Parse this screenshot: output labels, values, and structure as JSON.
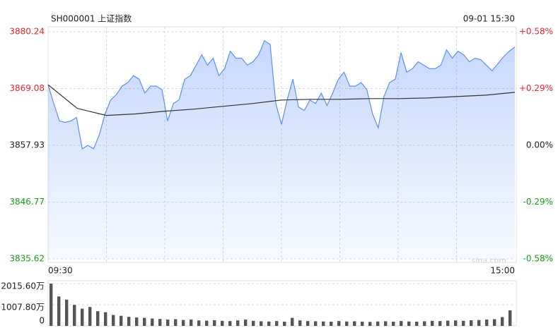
{
  "chart_data": [
    {
      "type": "line",
      "title": "SH000001 上证指数",
      "timestamp": "09-01 15:30",
      "watermark": "sina.com",
      "xtick_labels": [
        "09:30",
        "15:00"
      ],
      "ylim": [
        3835.62,
        3880.24
      ],
      "yticks": [
        3880.24,
        3869.08,
        3857.93,
        3846.77,
        3835.62
      ],
      "y2lim": [
        -0.58,
        0.58
      ],
      "y2ticks": [
        {
          "value": 0.58,
          "label": "+0.58%"
        },
        {
          "value": 0.29,
          "label": "+0.29%"
        },
        {
          "value": 0,
          "label": "0.00%"
        },
        {
          "value": -0.29,
          "label": "-0.29%"
        },
        {
          "value": -0.58,
          "label": "-0.58%"
        }
      ],
      "up_color": "#e8262a",
      "down_color": "#1a9a1a",
      "flat_color": "#222222",
      "grid": true,
      "series": [
        {
          "name": "price",
          "color": "#5b8ff9",
          "fill": true,
          "values": [
            3869.84,
            3866.14,
            3862.72,
            3862.44,
            3862.72,
            3863.4,
            3857.24,
            3857.93,
            3857.24,
            3859.98,
            3864.09,
            3866.82,
            3867.92,
            3869.56,
            3870.25,
            3871.62,
            3870.93,
            3868.19,
            3869.56,
            3869.56,
            3868.88,
            3862.72,
            3866.14,
            3866.82,
            3870.93,
            3871.62,
            3873.67,
            3875.72,
            3873.67,
            3875.04,
            3871.62,
            3872.98,
            3876.41,
            3875.04,
            3875.04,
            3873.67,
            3874.35,
            3875.72,
            3878.46,
            3877.78,
            3866.14,
            3862.03,
            3866.82,
            3870.93,
            3865.45,
            3864.77,
            3866.82,
            3866.14,
            3868.19,
            3865.73,
            3868.19,
            3870.93,
            3872.3,
            3869.56,
            3869.56,
            3870.25,
            3868.88,
            3864.09,
            3861.35,
            3867.51,
            3870.25,
            3870.93,
            3876.13,
            3872.3,
            3872.98,
            3874.35,
            3873.67,
            3872.98,
            3872.98,
            3873.67,
            3876.68,
            3875.04,
            3876.41,
            3875.72,
            3874.35,
            3875.04,
            3874.76,
            3873.67,
            3872.57,
            3873.94,
            3875.31,
            3876.41,
            3877.23
          ]
        },
        {
          "name": "average",
          "color": "#333333",
          "fill": false,
          "values": [
            3869.84,
            3865.18,
            3863.81,
            3864.09,
            3864.63,
            3865.04,
            3865.59,
            3866.14,
            3866.82,
            3866.96,
            3866.96,
            3867.1,
            3867.1,
            3867.23,
            3867.51,
            3867.78,
            3868.33
          ]
        }
      ]
    },
    {
      "type": "bar",
      "ylim": [
        0,
        2015.6
      ],
      "yticks": [
        {
          "value": 2015.6,
          "label": "2015.60万"
        },
        {
          "value": 1007.8,
          "label": "1007.80万"
        },
        0
      ],
      "color": "#555555",
      "values": [
        2015,
        1400,
        1250,
        1000,
        820,
        900,
        700,
        650,
        520,
        480,
        430,
        400,
        380,
        350,
        330,
        300,
        320,
        280,
        300,
        260,
        250,
        270,
        240,
        230,
        260,
        300,
        240,
        220,
        210,
        230,
        200,
        380,
        260,
        230,
        220,
        210,
        200,
        230,
        210,
        220,
        200,
        190,
        210,
        220,
        200,
        230,
        210,
        200,
        220,
        240,
        230,
        250,
        260,
        240,
        270,
        280,
        300,
        320,
        420,
        740
      ]
    }
  ]
}
